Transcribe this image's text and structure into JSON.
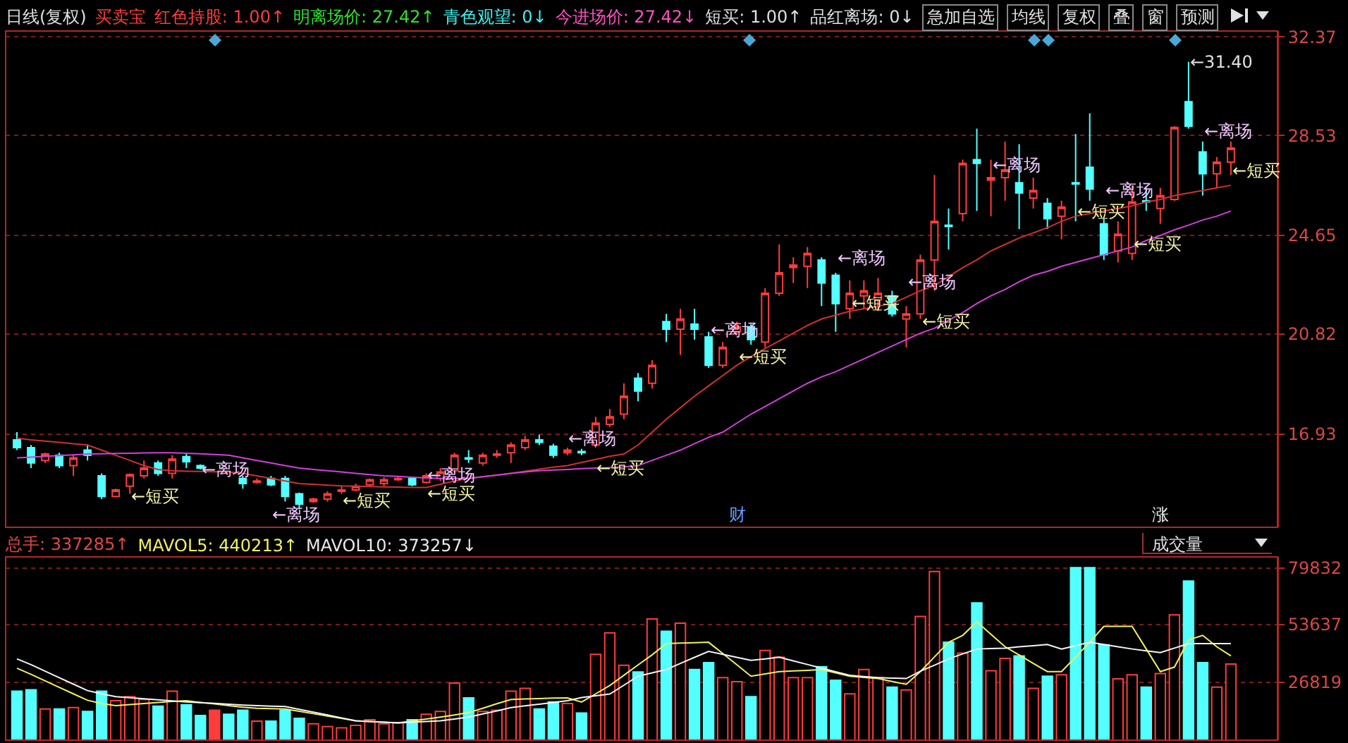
{
  "chart_data": [
    {
      "type": "candlestick",
      "tick_labels": "y",
      "grid": "y",
      "ylim": [
        13.3,
        32.6
      ],
      "yticks": [
        16.93,
        20.82,
        24.65,
        28.53,
        32.37
      ],
      "categories": [
        null,
        null,
        null,
        null,
        null,
        null,
        null,
        null,
        null,
        null,
        null,
        null,
        null,
        null,
        null,
        null,
        null,
        null,
        null,
        null,
        null,
        null,
        null,
        null,
        null,
        null,
        null,
        null,
        null,
        null,
        null,
        null,
        null,
        null,
        null,
        null,
        null,
        null,
        null,
        null,
        null,
        null,
        null,
        null,
        null,
        null,
        null,
        null,
        null,
        null,
        null,
        null,
        null,
        null,
        null,
        null,
        null,
        null,
        null,
        null,
        null,
        null,
        null,
        null,
        null,
        null,
        null,
        null,
        null,
        null,
        null,
        null,
        null,
        null,
        null,
        null,
        null,
        null,
        null,
        null,
        null,
        null,
        null,
        null,
        null,
        null,
        null
      ],
      "ohlc": [
        [
          16.7,
          17.0,
          16.3,
          16.4
        ],
        [
          16.4,
          16.5,
          15.6,
          15.8
        ],
        [
          15.9,
          16.2,
          15.8,
          16.15
        ],
        [
          16.1,
          16.2,
          15.6,
          15.7
        ],
        [
          15.7,
          16.1,
          15.3,
          16.0
        ],
        [
          16.3,
          16.5,
          15.9,
          16.1
        ],
        [
          15.3,
          15.4,
          14.4,
          14.5
        ],
        [
          14.5,
          14.8,
          14.5,
          14.75
        ],
        [
          14.9,
          15.4,
          14.6,
          15.35
        ],
        [
          15.3,
          15.9,
          15.2,
          15.6
        ],
        [
          15.8,
          15.9,
          15.3,
          15.4
        ],
        [
          15.4,
          16.1,
          15.2,
          15.95
        ],
        [
          16.05,
          16.2,
          15.6,
          15.85
        ],
        [
          15.7,
          15.75,
          15.55,
          15.6
        ],
        null,
        null,
        [
          15.2,
          15.3,
          14.8,
          15.0
        ],
        [
          15.05,
          15.2,
          15.0,
          15.1
        ],
        [
          15.2,
          15.3,
          14.9,
          14.95
        ],
        [
          15.2,
          15.3,
          14.3,
          14.5
        ],
        [
          14.6,
          14.65,
          14.0,
          14.2
        ],
        [
          14.3,
          14.45,
          14.25,
          14.4
        ],
        [
          14.4,
          14.7,
          14.3,
          14.6
        ],
        [
          14.7,
          14.9,
          14.6,
          14.75
        ],
        [
          14.75,
          15.0,
          14.7,
          14.9
        ],
        [
          14.95,
          15.2,
          14.9,
          15.15
        ],
        [
          15.0,
          15.25,
          14.9,
          15.15
        ],
        [
          15.15,
          15.3,
          15.1,
          15.2
        ],
        [
          15.2,
          15.25,
          14.9,
          14.95
        ],
        [
          15.05,
          15.4,
          15.0,
          15.3
        ],
        [
          15.2,
          15.6,
          15.1,
          15.45
        ],
        [
          15.5,
          16.2,
          15.4,
          16.1
        ],
        [
          16.0,
          16.3,
          15.8,
          15.95
        ],
        [
          15.8,
          16.2,
          15.7,
          16.1
        ],
        [
          16.1,
          16.3,
          16.0,
          16.15
        ],
        [
          16.2,
          16.6,
          15.8,
          16.5
        ],
        [
          16.4,
          16.85,
          16.3,
          16.7
        ],
        [
          16.7,
          16.9,
          16.5,
          16.6
        ],
        [
          16.45,
          16.55,
          16.0,
          16.1
        ],
        [
          16.2,
          16.4,
          16.1,
          16.3
        ],
        [
          16.25,
          16.35,
          16.1,
          16.2
        ],
        [
          16.5,
          17.6,
          16.4,
          17.35
        ],
        [
          17.3,
          17.9,
          17.2,
          17.6
        ],
        [
          17.7,
          18.9,
          17.5,
          18.4
        ],
        [
          19.1,
          19.3,
          18.2,
          18.6
        ],
        [
          18.9,
          19.8,
          18.7,
          19.6
        ],
        [
          21.3,
          21.6,
          20.5,
          21.0
        ],
        [
          21.0,
          21.8,
          20.0,
          21.4
        ],
        [
          21.2,
          21.8,
          20.6,
          21.0
        ],
        [
          20.7,
          20.9,
          19.5,
          19.6
        ],
        [
          19.6,
          20.5,
          19.5,
          20.3
        ],
        [
          20.9,
          21.3,
          20.8,
          21.1
        ],
        [
          21.1,
          21.2,
          20.4,
          20.6
        ],
        [
          20.5,
          22.6,
          20.3,
          22.4
        ],
        [
          22.4,
          24.3,
          22.3,
          23.2
        ],
        [
          23.4,
          23.8,
          22.8,
          23.5
        ],
        [
          23.45,
          24.2,
          22.6,
          23.95
        ],
        [
          23.7,
          23.8,
          21.9,
          22.8
        ],
        [
          23.1,
          23.2,
          20.9,
          22.0
        ],
        [
          21.8,
          22.9,
          21.4,
          22.4
        ],
        [
          22.3,
          22.9,
          21.8,
          22.5
        ],
        [
          22.15,
          23.0,
          21.7,
          22.4
        ],
        [
          22.3,
          22.5,
          21.5,
          21.6
        ],
        [
          21.4,
          21.9,
          20.3,
          21.6
        ],
        [
          21.6,
          23.9,
          21.4,
          23.7
        ],
        [
          23.7,
          27.0,
          22.5,
          25.2
        ],
        [
          25.05,
          25.7,
          24.1,
          25.0
        ],
        [
          25.5,
          27.6,
          25.2,
          27.45
        ],
        [
          27.6,
          28.8,
          25.6,
          27.45
        ],
        [
          26.8,
          27.6,
          25.4,
          26.9
        ],
        [
          26.9,
          28.3,
          26.0,
          27.2
        ],
        [
          26.7,
          28.2,
          24.9,
          26.3
        ],
        [
          26.1,
          26.9,
          25.7,
          26.4
        ],
        [
          25.9,
          26.1,
          24.9,
          25.3
        ],
        [
          25.4,
          26.0,
          24.5,
          25.75
        ],
        [
          26.7,
          28.6,
          25.2,
          26.65
        ],
        [
          27.3,
          29.4,
          26.0,
          26.45
        ],
        [
          25.1,
          25.3,
          23.7,
          23.9
        ],
        [
          24.05,
          25.2,
          23.6,
          24.7
        ],
        [
          23.95,
          26.6,
          23.7,
          25.95
        ],
        [
          26.0,
          26.5,
          25.6,
          25.95
        ],
        [
          25.7,
          26.5,
          25.1,
          26.2
        ],
        [
          26.05,
          28.9,
          26.0,
          28.85
        ],
        [
          29.85,
          31.4,
          28.8,
          28.9
        ],
        [
          27.9,
          28.3,
          26.2,
          27.05
        ],
        [
          27.05,
          27.7,
          26.5,
          27.5
        ],
        [
          27.5,
          28.3,
          27.0,
          28.05
        ]
      ],
      "colors": [
        "#54ffff",
        "#54ffff",
        "#ff3c3c",
        "#54ffff",
        "#ff3c3c",
        "#54ffff",
        "#54ffff",
        "#ff3c3c",
        "#ff3c3c",
        "#ff3c3c",
        "#54ffff",
        "#ff3c3c",
        "#54ffff",
        "#54ffff",
        null,
        null,
        "#54ffff",
        "#ff3c3c",
        "#54ffff",
        "#54ffff",
        "#54ffff",
        "#ff3c3c",
        "#ff3c3c",
        "#ff3c3c",
        "#ff3c3c",
        "#ff3c3c",
        "#ff3c3c",
        "#ff3c3c",
        "#54ffff",
        "#ff3c3c",
        "#ff3c3c",
        "#ff3c3c",
        "#54ffff",
        "#ff3c3c",
        "#ff3c3c",
        "#ff3c3c",
        "#ff3c3c",
        "#54ffff",
        "#54ffff",
        "#ff3c3c",
        "#54ffff",
        "#ff3c3c",
        "#ff3c3c",
        "#ff3c3c",
        "#54ffff",
        "#ff3c3c",
        "#54ffff",
        "#ff3c3c",
        "#54ffff",
        "#54ffff",
        "#ff3c3c",
        "#ff3c3c",
        "#54ffff",
        "#ff3c3c",
        "#ff3c3c",
        "#ff3c3c",
        "#ff3c3c",
        "#54ffff",
        "#54ffff",
        "#ff3c3c",
        "#ff3c3c",
        "#ff3c3c",
        "#54ffff",
        "#ff3c3c",
        "#ff3c3c",
        "#ff3c3c",
        "#54ffff",
        "#ff3c3c",
        "#54ffff",
        "#ff3c3c",
        "#ff3c3c",
        "#54ffff",
        "#ff3c3c",
        "#54ffff",
        "#ff3c3c",
        "#54ffff",
        "#54ffff",
        "#54ffff",
        "#ff3c3c",
        "#ff3c3c",
        "#54ffff",
        "#ff3c3c",
        "#ff3c3c",
        "#54ffff",
        "#54ffff",
        "#ff3c3c",
        "#ff3c3c"
      ],
      "series": [
        {
          "type": "line",
          "color": "#d03030",
          "values": [
            16.77,
            16.7,
            16.65,
            16.6,
            16.55,
            16.5,
            16.3,
            16.1,
            15.9,
            15.7,
            15.55,
            15.5,
            15.48,
            15.47,
            15.46,
            15.45,
            15.4,
            15.3,
            15.2,
            15.1,
            15.0,
            14.97,
            14.94,
            14.91,
            14.9,
            14.88,
            14.87,
            14.86,
            14.85,
            14.85,
            14.97,
            15.1,
            15.2,
            15.27,
            15.33,
            15.4,
            15.48,
            15.56,
            15.64,
            15.7,
            15.82,
            15.94,
            16.06,
            16.15,
            16.5,
            17.0,
            17.5,
            17.95,
            18.4,
            18.8,
            19.2,
            19.6,
            19.94,
            20.25,
            20.55,
            20.85,
            21.15,
            21.4,
            21.55,
            21.7,
            21.8,
            21.9,
            22.0,
            22.25,
            22.5,
            22.7,
            23.05,
            23.4,
            23.7,
            24.05,
            24.3,
            24.55,
            24.75,
            24.95,
            25.2,
            25.4,
            25.5,
            25.6,
            25.7,
            25.8,
            25.95,
            26.05,
            26.2,
            26.3,
            26.4,
            26.5,
            26.6
          ]
        },
        {
          "type": "line",
          "color": "#d040d8",
          "values": [
            16.0,
            16.03,
            16.06,
            16.09,
            16.12,
            16.15,
            16.16,
            16.17,
            16.18,
            16.19,
            16.2,
            16.2,
            16.18,
            16.16,
            16.13,
            16.1,
            16.0,
            15.9,
            15.8,
            15.7,
            15.6,
            15.55,
            15.5,
            15.45,
            15.4,
            15.35,
            15.3,
            15.28,
            15.25,
            15.22,
            15.2,
            15.2,
            15.2,
            15.27,
            15.33,
            15.4,
            15.45,
            15.5,
            15.53,
            15.55,
            15.58,
            15.6,
            15.62,
            15.65,
            15.7,
            15.9,
            16.1,
            16.3,
            16.55,
            16.8,
            17.0,
            17.35,
            17.7,
            18.0,
            18.3,
            18.6,
            18.9,
            19.15,
            19.35,
            19.6,
            19.85,
            20.1,
            20.35,
            20.6,
            20.85,
            21.04,
            21.35,
            21.65,
            22.0,
            22.3,
            22.55,
            22.85,
            23.1,
            23.25,
            23.45,
            23.6,
            23.75,
            23.9,
            24.05,
            24.2,
            24.45,
            24.65,
            24.87,
            25.05,
            25.25,
            25.4,
            25.6
          ]
        }
      ],
      "annotations": [
        "日线(复权)",
        "买卖宝",
        "红色持股: 1.00↑",
        "明离场价: 27.42↑",
        "青色观望: 0↓",
        "今进场价: 27.42↓",
        "短买: 1.00↑",
        "品红离场: 0↓",
        "急加自选",
        "均线",
        "复权",
        "叠",
        "窗",
        "预测",
        "←短买",
        "←离场",
        "←离场",
        "←短买",
        "←离场",
        "←短买",
        "←离场",
        "←短买",
        "←离场",
        "←短买",
        "←离场",
        "←短买",
        "←离场",
        "←短买",
        "←离场",
        "←短买",
        "←离场",
        "←短买",
        "←离场",
        "←短买",
        "←31.40",
        "财",
        "涨"
      ]
    },
    {
      "type": "bar",
      "tick_labels": "y",
      "grid": "y",
      "ylim": [
        0,
        85000
      ],
      "yticks": [
        26819,
        53637,
        79832
      ],
      "categories": [
        null,
        null,
        null,
        null,
        null,
        null,
        null,
        null,
        null,
        null,
        null,
        null,
        null,
        null,
        null,
        null,
        null,
        null,
        null,
        null,
        null,
        null,
        null,
        null,
        null,
        null,
        null,
        null,
        null,
        null,
        null,
        null,
        null,
        null,
        null,
        null,
        null,
        null,
        null,
        null,
        null,
        null,
        null,
        null,
        null,
        null,
        null,
        null,
        null,
        null,
        null,
        null,
        null,
        null,
        null,
        null,
        null,
        null,
        null,
        null,
        null,
        null,
        null,
        null,
        null,
        null,
        null,
        null,
        null,
        null,
        null,
        null,
        null,
        null,
        null,
        null,
        null,
        null,
        null,
        null,
        null,
        null,
        null,
        null,
        null,
        null,
        null
      ],
      "series": [
        {
          "type": "bar",
          "values": [
            22700,
            23400,
            14500,
            14500,
            15100,
            13300,
            22700,
            18300,
            20200,
            18900,
            15800,
            22700,
            16400,
            11400,
            13900,
            12000,
            13900,
            8800,
            8800,
            13900,
            10100,
            7600,
            6300,
            5700,
            6900,
            9500,
            7600,
            8200,
            9500,
            12000,
            13300,
            26500,
            19600,
            13300,
            13900,
            22700,
            24000,
            14500,
            17700,
            17000,
            12600,
            39800,
            49800,
            34700,
            31600,
            56200,
            50500,
            54300,
            32800,
            36000,
            29000,
            27100,
            20200,
            41600,
            38500,
            29000,
            29000,
            34100,
            27800,
            21500,
            32800,
            29000,
            24600,
            23300,
            57400,
            78200,
            45400,
            40400,
            63700,
            32200,
            37900,
            39100,
            24000,
            29700,
            30300,
            80000,
            80000,
            44200,
            28400,
            30300,
            24600,
            30900,
            58100,
            73800,
            36000,
            24600,
            35300
          ],
          "colors": [
            "#54ffff",
            "#54ffff",
            "#ff3c3c",
            "#54ffff",
            "#ff3c3c",
            "#54ffff",
            "#54ffff",
            "#ff3c3c",
            "#ff3c3c",
            "#ff3c3c",
            "#54ffff",
            "#ff3c3c",
            "#54ffff",
            "#54ffff",
            "#ff3c3c",
            "#54ffff",
            "#54ffff",
            "#ff3c3c",
            "#54ffff",
            "#54ffff",
            "#54ffff",
            "#ff3c3c",
            "#ff3c3c",
            "#ff3c3c",
            "#ff3c3c",
            "#ff3c3c",
            "#ff3c3c",
            "#ff3c3c",
            "#54ffff",
            "#ff3c3c",
            "#ff3c3c",
            "#ff3c3c",
            "#54ffff",
            "#ff3c3c",
            "#ff3c3c",
            "#ff3c3c",
            "#ff3c3c",
            "#54ffff",
            "#54ffff",
            "#ff3c3c",
            "#54ffff",
            "#ff3c3c",
            "#ff3c3c",
            "#ff3c3c",
            "#54ffff",
            "#ff3c3c",
            "#54ffff",
            "#ff3c3c",
            "#54ffff",
            "#54ffff",
            "#ff3c3c",
            "#ff3c3c",
            "#54ffff",
            "#ff3c3c",
            "#ff3c3c",
            "#ff3c3c",
            "#ff3c3c",
            "#54ffff",
            "#54ffff",
            "#ff3c3c",
            "#ff3c3c",
            "#ff3c3c",
            "#54ffff",
            "#ff3c3c",
            "#ff3c3c",
            "#ff3c3c",
            "#54ffff",
            "#ff3c3c",
            "#54ffff",
            "#ff3c3c",
            "#ff3c3c",
            "#54ffff",
            "#ff3c3c",
            "#54ffff",
            "#ff3c3c",
            "#54ffff",
            "#54ffff",
            "#54ffff",
            "#ff3c3c",
            "#ff3c3c",
            "#54ffff",
            "#ff3c3c",
            "#ff3c3c",
            "#54ffff",
            "#54ffff",
            "#ff3c3c",
            "#ff3c3c"
          ]
        },
        {
          "type": "line",
          "color": "#f0f060",
          "values": [
            33400,
            30500,
            27500,
            24500,
            21500,
            18500,
            17000,
            16000,
            16500,
            17000,
            17500,
            18000,
            18300,
            17500,
            16800,
            16000,
            15300,
            14800,
            14600,
            14500,
            13400,
            12300,
            11200,
            10100,
            9000,
            8700,
            8300,
            8000,
            8900,
            9800,
            10700,
            11700,
            12800,
            14800,
            16900,
            18900,
            19100,
            19300,
            19500,
            19600,
            17700,
            21500,
            25400,
            30100,
            34900,
            39600,
            44800,
            45000,
            45200,
            45400,
            40200,
            35000,
            29700,
            30700,
            31800,
            32100,
            32400,
            32800,
            31200,
            29700,
            29100,
            28600,
            27200,
            25900,
            31800,
            38600,
            45400,
            48600,
            54900,
            49100,
            43300,
            39500,
            35600,
            31800,
            31800,
            38600,
            45400,
            52800,
            52800,
            52800,
            42300,
            31800,
            33900,
            46500,
            48600,
            43300,
            39100
          ]
        },
        {
          "type": "line",
          "color": "#f4f4f4",
          "values": [
            37700,
            35000,
            32000,
            29000,
            26000,
            23000,
            21500,
            20200,
            19700,
            19200,
            18700,
            18200,
            17700,
            17400,
            17100,
            16700,
            16300,
            16000,
            15800,
            15600,
            14300,
            13000,
            11700,
            10300,
            9000,
            8700,
            8300,
            8000,
            8300,
            8700,
            9000,
            9800,
            10700,
            12200,
            13600,
            15100,
            15900,
            16700,
            17500,
            18300,
            19800,
            20600,
            21400,
            25500,
            29700,
            31200,
            32800,
            35600,
            38400,
            41200,
            39800,
            38400,
            37000,
            37700,
            38500,
            36800,
            35100,
            33400,
            31700,
            30100,
            29500,
            29000,
            28800,
            28600,
            32000,
            34800,
            37700,
            40000,
            42300,
            42500,
            42700,
            43300,
            43800,
            44400,
            42300,
            43800,
            45400,
            44400,
            43300,
            42300,
            41400,
            40600,
            42700,
            44800,
            44800,
            44800,
            44800
          ]
        }
      ],
      "annotations": [
        "总手: 337285↑",
        "MAVOL5: 440213↑",
        "MAVOL10: 373257↓",
        "成交量"
      ]
    }
  ]
}
